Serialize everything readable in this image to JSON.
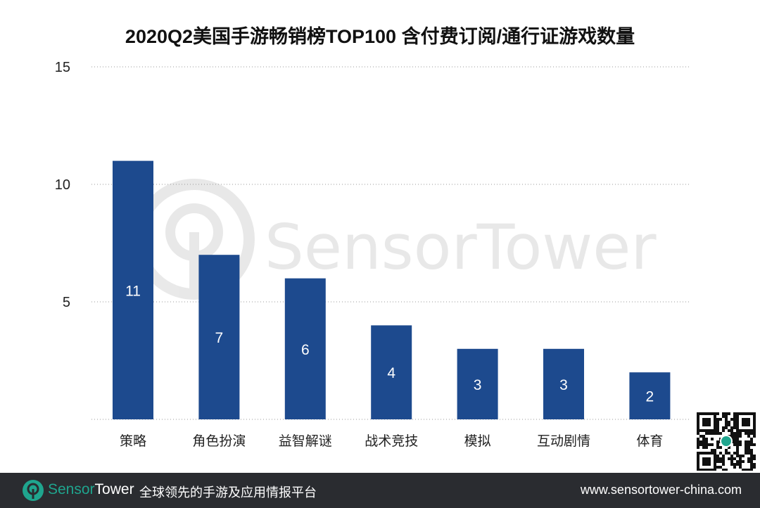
{
  "chart_data": {
    "type": "bar",
    "title": "2020Q2美国手游畅销榜TOP100 含付费订阅/通行证游戏数量",
    "categories": [
      "策略",
      "角色扮演",
      "益智解谜",
      "战术竞技",
      "模拟",
      "互动剧情",
      "体育"
    ],
    "values": [
      11,
      7,
      6,
      4,
      3,
      3,
      2
    ],
    "ylim": [
      0,
      15
    ],
    "yticks": [
      5,
      10,
      15
    ],
    "grid": true,
    "grid_style": "dotted",
    "bar_color": "#1d4a8e",
    "data_labels": "inside bars",
    "xlabel": "",
    "ylabel": ""
  },
  "watermark": "SensorTower",
  "footer": {
    "brand_part1": "Sensor",
    "brand_part2": "Tower",
    "slogan": "全球领先的手游及应用情报平台",
    "url": "www.sensortower-china.com",
    "accent": "#1fa58e",
    "background": "#2a2c30"
  }
}
